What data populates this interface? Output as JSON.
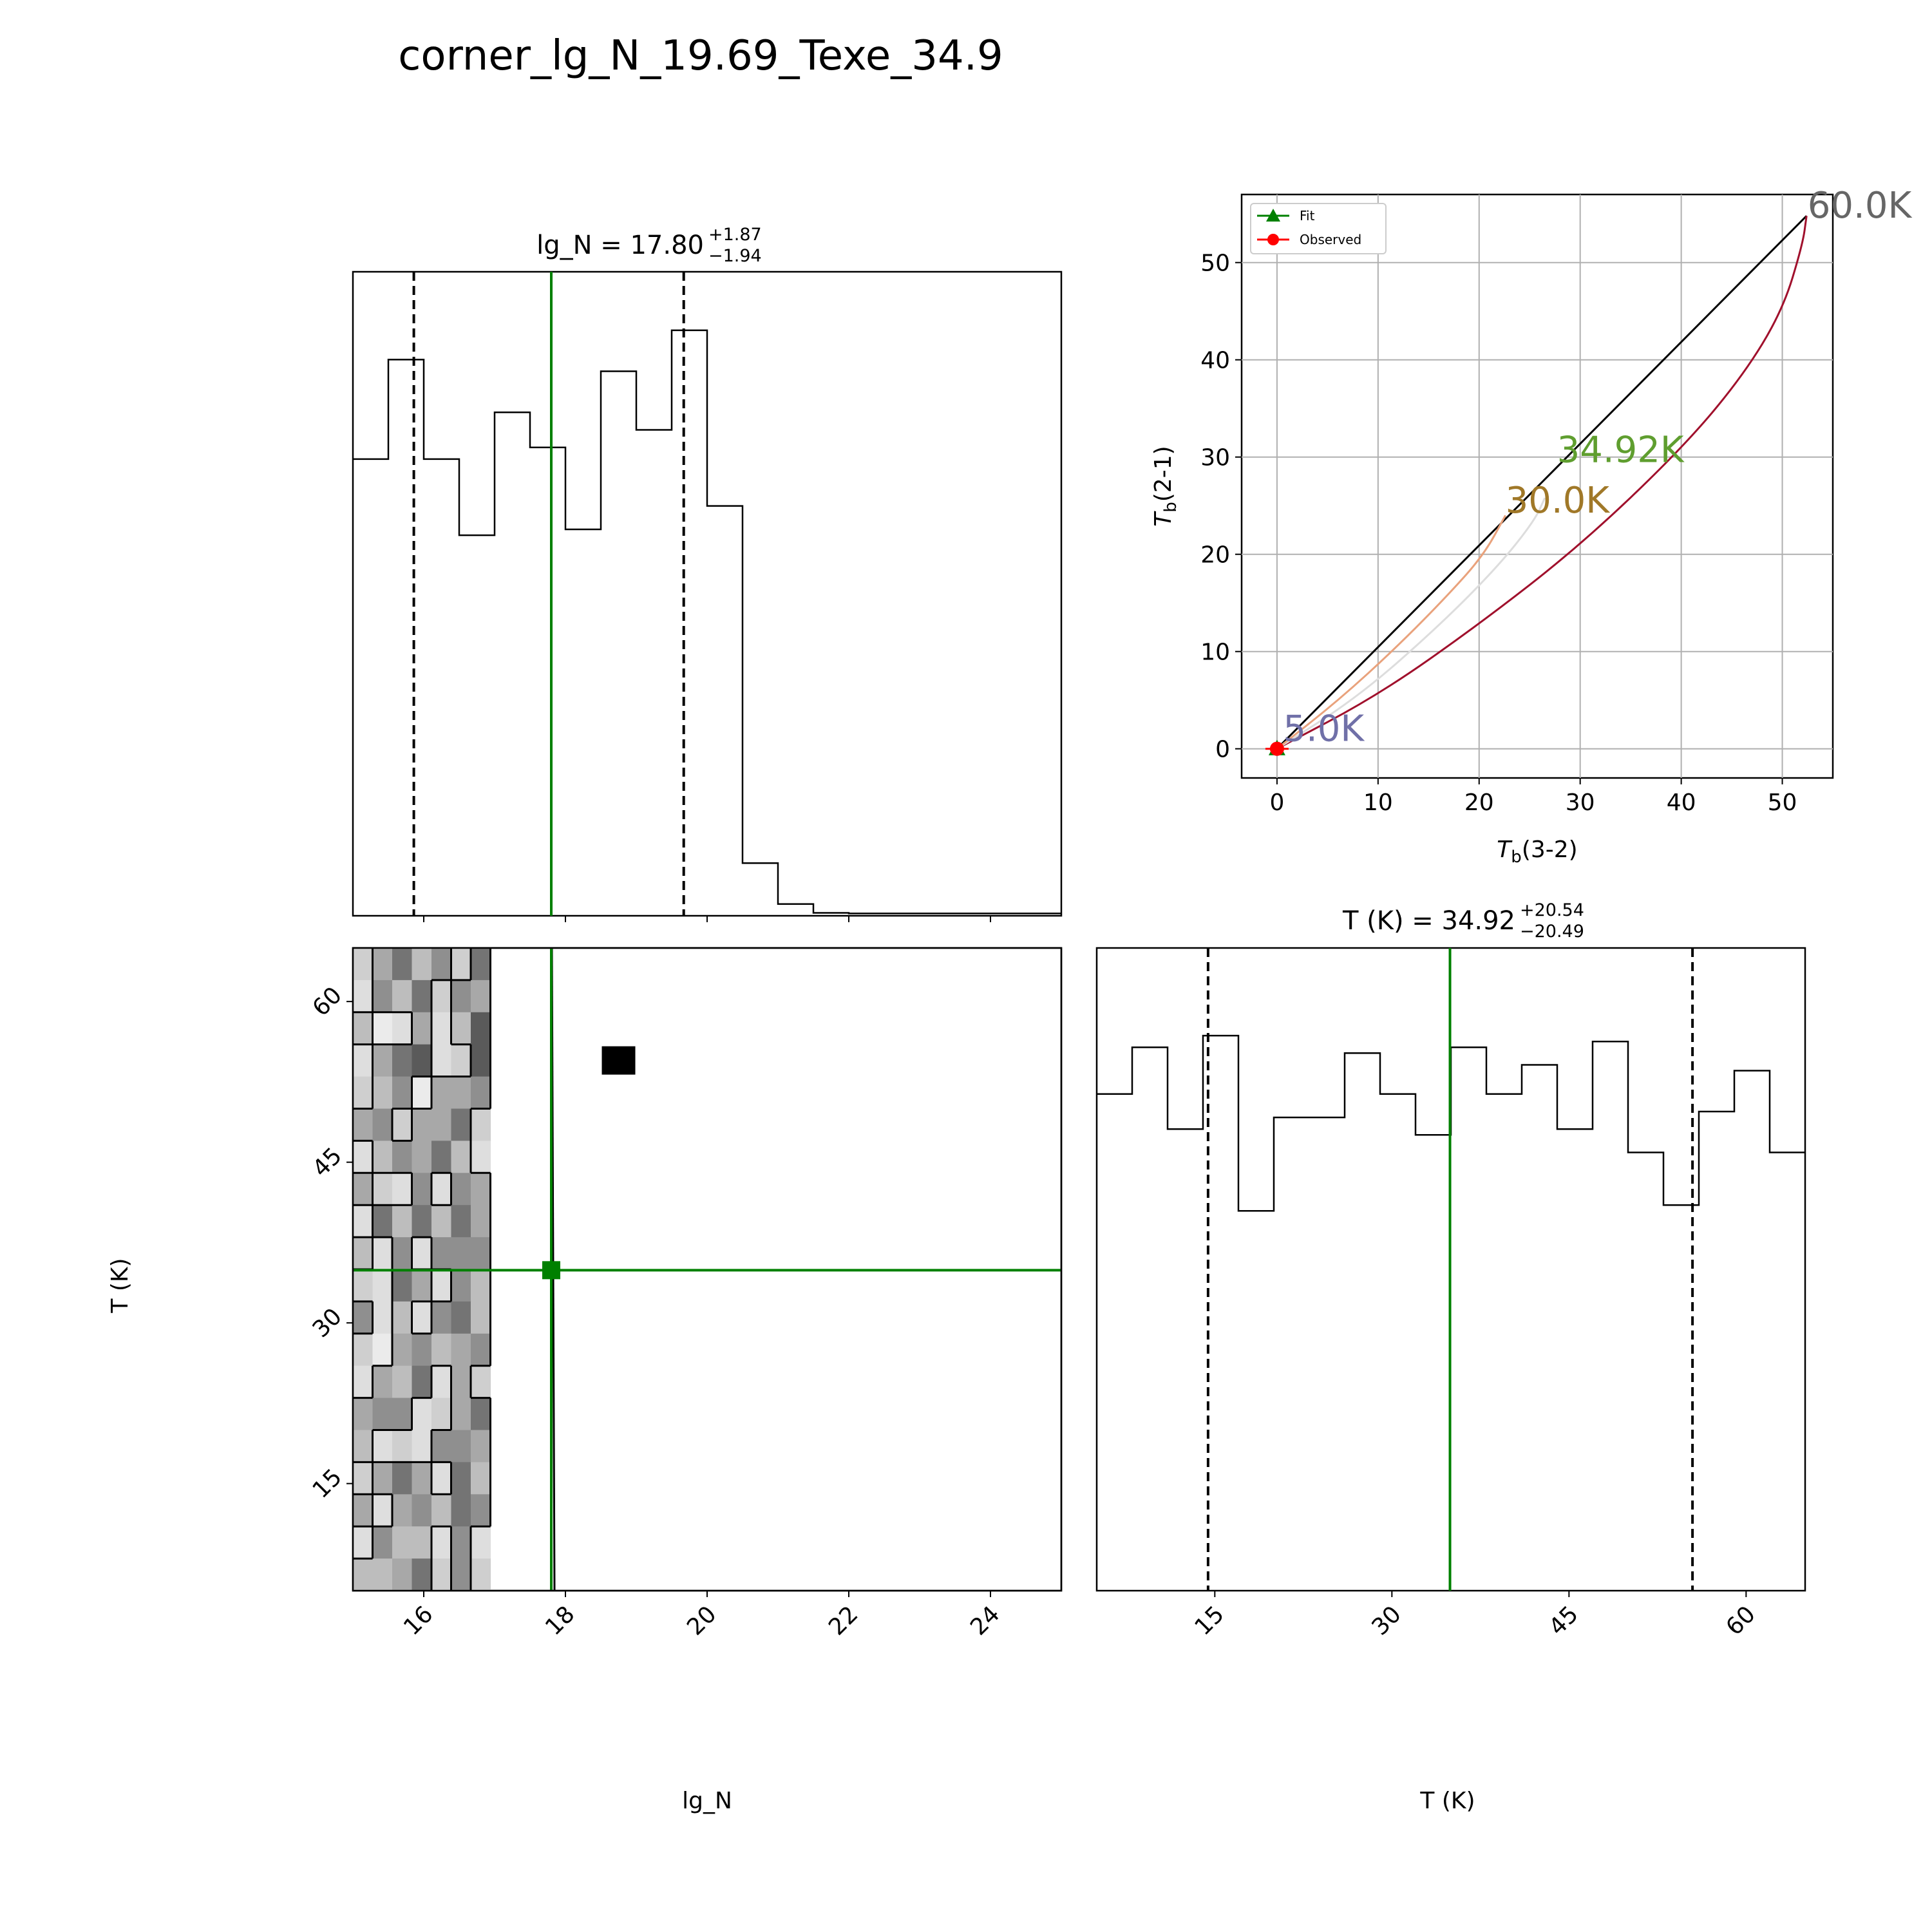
{
  "figure": {
    "title": "corner_lg_N_19.69_Texe_34.9"
  },
  "chart_data": [
    {
      "id": "hist_lgN",
      "type": "step-histogram",
      "title": {
        "base": "lg_N = 17.80",
        "sup": "+1.87",
        "sub": "−1.94"
      },
      "xlim": [
        15,
        25
      ],
      "ylim": [
        0,
        1.1
      ],
      "bin_edges": [
        15,
        15.5,
        16,
        16.5,
        17,
        17.5,
        18,
        18.5,
        19,
        19.5,
        20,
        20.5,
        21,
        21.5,
        22,
        22.5,
        23,
        23.5,
        24,
        24.5,
        25
      ],
      "values": [
        0.78,
        0.95,
        0.78,
        0.65,
        0.86,
        0.8,
        0.66,
        0.93,
        0.83,
        1.0,
        0.7,
        0.09,
        0.02,
        0.005,
        0.004,
        0.004,
        0.004,
        0.004,
        0.004,
        0.004
      ],
      "median": 17.8,
      "quantiles": [
        15.86,
        19.67
      ],
      "median_color": "#008000",
      "quantile_color": "#000000"
    },
    {
      "id": "hist_T",
      "type": "step-histogram",
      "title": {
        "base": "T (K) = 34.92",
        "sup": "+20.54",
        "sub": "−20.49"
      },
      "xlim": [
        5,
        65
      ],
      "ylim": [
        0,
        1.1
      ],
      "x_ticks": [
        "15",
        "30",
        "45",
        "60"
      ],
      "x_tick_values": [
        15,
        30,
        45,
        60
      ],
      "x_label": "T (K)",
      "bin_edges": [
        5,
        8,
        11,
        14,
        17,
        20,
        23,
        26,
        29,
        32,
        35,
        38,
        41,
        44,
        47,
        50,
        53,
        56,
        59,
        62,
        65
      ],
      "values": [
        0.85,
        0.93,
        0.79,
        0.95,
        0.65,
        0.81,
        0.81,
        0.92,
        0.85,
        0.78,
        0.93,
        0.85,
        0.9,
        0.79,
        0.94,
        0.75,
        0.66,
        0.82,
        0.89,
        0.75
      ],
      "median": 34.92,
      "quantiles": [
        14.43,
        55.46
      ],
      "median_color": "#008000",
      "quantile_color": "#000000"
    },
    {
      "id": "joint",
      "type": "heatmap",
      "xlim": [
        15,
        25
      ],
      "ylim": [
        5,
        65
      ],
      "x_ticks": [
        "16",
        "18",
        "20",
        "22",
        "24"
      ],
      "x_tick_values": [
        16,
        18,
        20,
        22,
        24
      ],
      "y_ticks": [
        "15",
        "30",
        "45",
        "60"
      ],
      "y_tick_values": [
        15,
        30,
        45,
        60
      ],
      "x_label": "lg_N",
      "y_label": "T (K)",
      "n_x_bins": 20,
      "n_y_bins": 20,
      "density_rows_top_to_bottom": [
        "4685748000",
        "3758476000",
        "5236359000",
        "3689349000",
        "4572667000",
        "6746684000",
        "3576853000",
        "6437376000",
        "3858586000",
        "5373777000",
        "4386375000",
        "7353785000",
        "4267567000",
        "3658364000",
        "6773468000",
        "5343776000",
        "4686385000",
        "6367587000",
        "3755373000",
        "5568474000"
      ],
      "max_cell": {
        "x": 18.75,
        "y": 54.5
      },
      "truth": {
        "x": 17.8,
        "y": 34.92
      },
      "truth_color": "#008000"
    },
    {
      "id": "radex_curves",
      "type": "line",
      "xlim": [
        -3.5,
        55
      ],
      "ylim": [
        -3,
        57
      ],
      "x_ticks": [
        "0",
        "10",
        "20",
        "30",
        "40",
        "50"
      ],
      "x_tick_values": [
        0,
        10,
        20,
        30,
        40,
        50
      ],
      "y_ticks": [
        "0",
        "10",
        "20",
        "30",
        "40",
        "50"
      ],
      "y_tick_values": [
        0,
        10,
        20,
        30,
        40,
        50
      ],
      "x_label": {
        "main": "T",
        "sub": "b",
        "rest": "(3-2)"
      },
      "y_label": {
        "main": "T",
        "sub": "b",
        "rest": "(2-1)"
      },
      "grid": true,
      "legend": {
        "position": "top-left",
        "entries": [
          {
            "label": "Fit",
            "color": "#008000",
            "marker": "triangle"
          },
          {
            "label": "Observed",
            "color": "#ff0000",
            "marker": "circle"
          }
        ]
      },
      "series": [
        {
          "color": "#000000",
          "x": [
            0,
            52.4
          ],
          "y": [
            0,
            54.8
          ]
        },
        {
          "color": "#a0102c",
          "x": [
            0,
            10,
            20,
            30,
            40,
            46,
            50,
            52,
            52.4
          ],
          "y": [
            0,
            5.5,
            12.8,
            20.9,
            30.8,
            38.2,
            45.0,
            51.8,
            54.8
          ]
        },
        {
          "color": "#dddddd",
          "x": [
            0,
            8,
            16,
            22,
            25.5,
            26.5
          ],
          "y": [
            0,
            5.3,
            12.6,
            18.9,
            23.5,
            25.8
          ]
        },
        {
          "color": "#e9a27c",
          "x": [
            0,
            6,
            12,
            17,
            20.5,
            22.6
          ],
          "y": [
            0,
            4.9,
            10.6,
            15.9,
            20.0,
            24.0
          ]
        }
      ],
      "annotations": [
        {
          "text": "60.0K",
          "x": 52.5,
          "y": 54.6,
          "color": "#666666"
        },
        {
          "text": "34.92K",
          "x": 27.7,
          "y": 29.5,
          "color": "#5f9e2f"
        },
        {
          "text": "30.0K",
          "x": 22.6,
          "y": 24.3,
          "color": "#a07828"
        },
        {
          "text": "5.0K",
          "x": 0.6,
          "y": 0.8,
          "color": "#7070a8"
        }
      ],
      "observed": {
        "x": 0,
        "y": 0,
        "color": "#ff0000"
      },
      "fit": {
        "x": 0,
        "y": 0,
        "color": "#008000"
      }
    }
  ]
}
